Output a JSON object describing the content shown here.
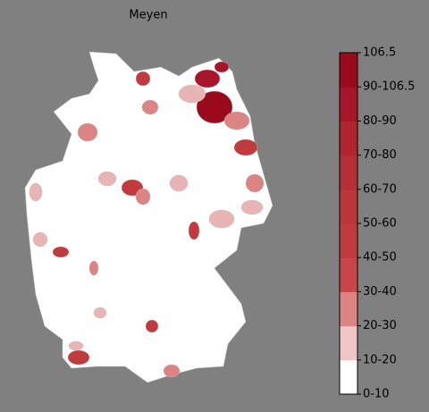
{
  "chart_data": {
    "type": "choropleth",
    "title": "Meyen",
    "regions": [
      {
        "value": 100,
        "color": "#9b0a1c"
      },
      {
        "value": 95,
        "color": "#a8142a"
      },
      {
        "value": 95,
        "color": "#a8142a"
      },
      {
        "value": 55,
        "color": "#c13a3e"
      },
      {
        "value": 15,
        "color": "#e8b4b5"
      },
      {
        "value": 25,
        "color": "#dc8384"
      },
      {
        "value": 25,
        "color": "#dc8384"
      },
      {
        "value": 60,
        "color": "#c13a3e"
      },
      {
        "value": 25,
        "color": "#dc8384"
      },
      {
        "value": 60,
        "color": "#c13a3e"
      },
      {
        "value": 25,
        "color": "#dc8384"
      },
      {
        "value": 15,
        "color": "#e8b4b5"
      },
      {
        "value": 15,
        "color": "#e8b4b5"
      },
      {
        "value": 25,
        "color": "#dc8384"
      },
      {
        "value": 15,
        "color": "#e8b4b5"
      },
      {
        "value": 15,
        "color": "#e8b4b5"
      },
      {
        "value": 55,
        "color": "#c13a3e"
      },
      {
        "value": 60,
        "color": "#c13a3e"
      },
      {
        "value": 15,
        "color": "#e8b4b5"
      },
      {
        "value": 15,
        "color": "#e8b4b5"
      },
      {
        "value": 25,
        "color": "#dc8384"
      },
      {
        "value": 55,
        "color": "#c13a3e"
      },
      {
        "value": 15,
        "color": "#e8b4b5"
      },
      {
        "value": 60,
        "color": "#c13a3e"
      },
      {
        "value": 25,
        "color": "#dc8384"
      },
      {
        "value": 15,
        "color": "#e8b4b5"
      }
    ],
    "colorbar": {
      "labels": [
        "0-10",
        "10-20",
        "20-30",
        "30-40",
        "40-50",
        "50-60",
        "60-70",
        "70-80",
        "80-90",
        "90-106.5",
        "106.5"
      ],
      "colors": [
        "#ffffff",
        "#f0c5c5",
        "#dc8384",
        "#c8454a",
        "#c13a3e",
        "#bb3539",
        "#b62e36",
        "#b02630",
        "#a8142a",
        "#9b0a1c"
      ]
    }
  }
}
